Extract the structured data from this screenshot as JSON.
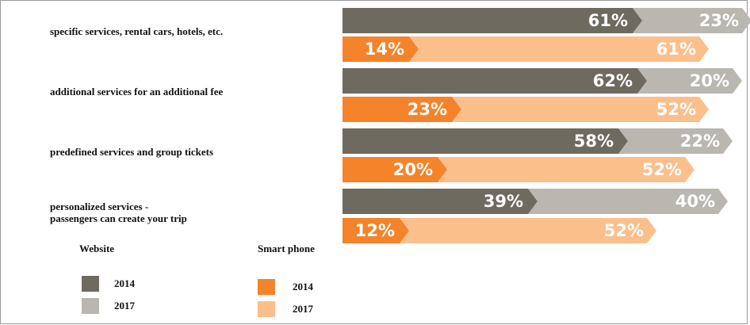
{
  "chart_data": {
    "type": "bar",
    "categories": [
      "specific services, rental cars, hotels, etc.",
      "additional services for an additional fee",
      "predefined services and group tickets",
      "personalized services -\npassengers can create your trip"
    ],
    "groups": [
      {
        "name": "Website",
        "series": [
          {
            "name": "2014",
            "color": "#6f6a60",
            "values": [
              61,
              62,
              58,
              39
            ],
            "value_labels": [
              "61%",
              "62%",
              "58%",
              "39%"
            ]
          },
          {
            "name": "2017",
            "color": "#b9b7b0",
            "values": [
              23,
              20,
              22,
              40
            ],
            "value_labels": [
              "23%",
              "20%",
              "22%",
              "40%"
            ]
          }
        ]
      },
      {
        "name": "Smart phone",
        "series": [
          {
            "name": "2014",
            "color": "#f5832a",
            "values": [
              14,
              23,
              20,
              12
            ],
            "value_labels": [
              "14%",
              "23%",
              "20%",
              "12%"
            ]
          },
          {
            "name": "2017",
            "color": "#fbbf8c",
            "values": [
              61,
              52,
              52,
              52
            ],
            "value_labels": [
              "61%",
              "52%",
              "52%",
              "52%"
            ]
          }
        ]
      }
    ]
  }
}
